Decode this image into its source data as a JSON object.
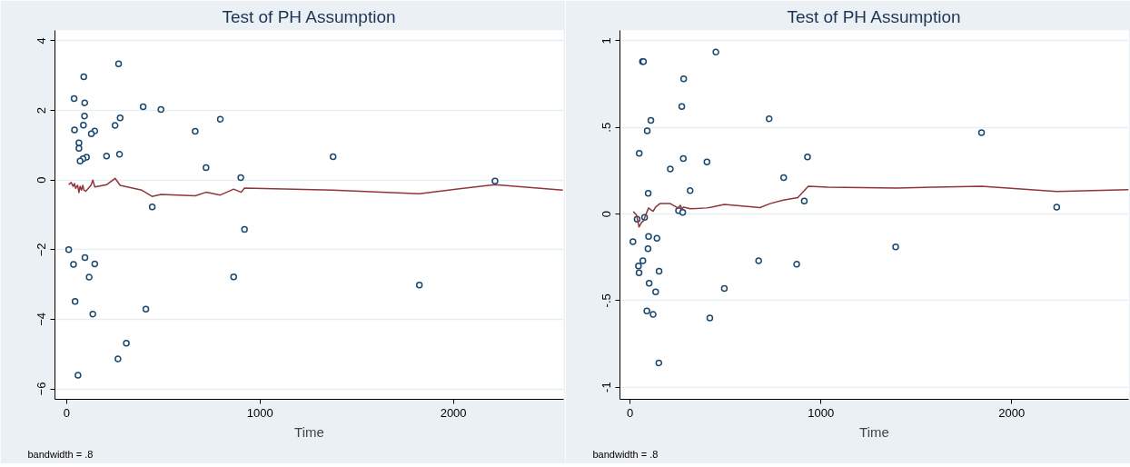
{
  "chart_data": [
    {
      "type": "scatter",
      "title": "Test of PH Assumption",
      "xlabel": "Time",
      "annotations": [
        "bandwidth = .8"
      ],
      "xlim": [
        -60,
        2570
      ],
      "xticks": [
        0,
        1000,
        2000
      ],
      "ylim": [
        -6.3,
        4.3
      ],
      "yticks": [
        -6,
        -4,
        -2,
        0,
        2,
        4
      ],
      "grid": "y",
      "series": [
        {
          "marker": "circle",
          "color": "#1a476f",
          "x": [
            89,
            269,
            39,
            94,
            396,
            488,
            93,
            277,
            795,
            87,
            251,
            41,
            665,
            146,
            128,
            64,
            64,
            207,
            274,
            103,
            85,
            70,
            721,
            901,
            443,
            920,
            11,
            95,
            36,
            146,
            117,
            864,
            44,
            410,
            136,
            309,
            266,
            59,
            1378,
            1824,
            2215
          ],
          "values": [
            2.97,
            3.34,
            2.34,
            2.22,
            2.11,
            2.03,
            1.84,
            1.79,
            1.75,
            1.58,
            1.57,
            1.44,
            1.4,
            1.41,
            1.33,
            1.07,
            0.91,
            0.69,
            0.74,
            0.66,
            0.61,
            0.55,
            0.36,
            0.07,
            -0.77,
            -1.42,
            -2.0,
            -2.23,
            -2.42,
            -2.41,
            -2.79,
            -2.78,
            -3.49,
            -3.71,
            -3.85,
            -4.69,
            -5.14,
            -5.61,
            0.67,
            -3.02,
            -0.03
          ]
        },
        {
          "type": "line",
          "marker": "none",
          "line_style": "solid",
          "color": "#90353b",
          "x": [
            11,
            24,
            34,
            41,
            47,
            57,
            64,
            70,
            77,
            84,
            90,
            99,
            126,
            136,
            146,
            208,
            251,
            277,
            389,
            442,
            488,
            665,
            721,
            795,
            864,
            903,
            920,
            1376,
            1824,
            2215,
            2566
          ],
          "values": [
            -0.13,
            -0.07,
            -0.18,
            -0.1,
            -0.24,
            -0.15,
            -0.36,
            -0.18,
            -0.29,
            -0.15,
            -0.29,
            -0.32,
            -0.15,
            0.0,
            -0.2,
            -0.13,
            0.05,
            -0.15,
            -0.29,
            -0.47,
            -0.41,
            -0.45,
            -0.35,
            -0.43,
            -0.26,
            -0.35,
            -0.23,
            -0.29,
            -0.39,
            -0.13,
            -0.29
          ]
        }
      ]
    },
    {
      "type": "scatter",
      "title": "Test of PH Assumption",
      "xlabel": "Time",
      "annotations": [
        "bandwidth = .8"
      ],
      "xlim": [
        -53,
        2613
      ],
      "xticks": [
        0,
        1000,
        2000
      ],
      "ylim": [
        -1.07,
        1.06
      ],
      "yticks": [
        {
          "value": -1,
          "label": "-1"
        },
        {
          "value": -0.5,
          "label": "-.5"
        },
        {
          "value": 0,
          "label": "0"
        },
        {
          "value": 0.5,
          "label": ".5"
        },
        {
          "value": 1,
          "label": "1"
        }
      ],
      "grid": "y",
      "series": [
        {
          "marker": "circle",
          "color": "#1a476f",
          "x": [
            450,
            65,
            70,
            281,
            271,
            729,
            109,
            90,
            48,
            930,
            279,
            403,
            211,
            805,
            315,
            95,
            913,
            254,
            276,
            37,
            76,
            97,
            141,
            15,
            94,
            67,
            674,
            873,
            44,
            47,
            152,
            100,
            494,
            134,
            88,
            121,
            418,
            151,
            1392,
            1842,
            2236
          ],
          "values": [
            0.935,
            0.88,
            0.88,
            0.78,
            0.62,
            0.55,
            0.54,
            0.48,
            0.35,
            0.33,
            0.32,
            0.3,
            0.26,
            0.21,
            0.135,
            0.12,
            0.075,
            0.02,
            0.01,
            -0.03,
            -0.02,
            -0.13,
            -0.14,
            -0.16,
            -0.2,
            -0.27,
            -0.27,
            -0.29,
            -0.3,
            -0.34,
            -0.33,
            -0.4,
            -0.43,
            -0.45,
            -0.56,
            -0.58,
            -0.6,
            -0.86,
            -0.19,
            0.47,
            0.04
          ]
        },
        {
          "type": "line",
          "marker": "none",
          "line_style": "solid",
          "color": "#90353b",
          "x": [
            17,
            34,
            47,
            59,
            70,
            84,
            97,
            109,
            121,
            134,
            156,
            211,
            251,
            264,
            271,
            281,
            315,
            401,
            427,
            494,
            681,
            733,
            803,
            879,
            934,
            1037,
            1397,
            1842,
            2236,
            2613
          ],
          "values": [
            0.014,
            -0.006,
            -0.075,
            -0.05,
            -0.04,
            0.0,
            0.035,
            0.024,
            0.016,
            0.04,
            0.06,
            0.06,
            0.035,
            0.05,
            0.03,
            0.04,
            0.03,
            0.035,
            0.04,
            0.055,
            0.037,
            0.06,
            0.08,
            0.095,
            0.16,
            0.155,
            0.15,
            0.16,
            0.13,
            0.14
          ]
        }
      ]
    }
  ]
}
